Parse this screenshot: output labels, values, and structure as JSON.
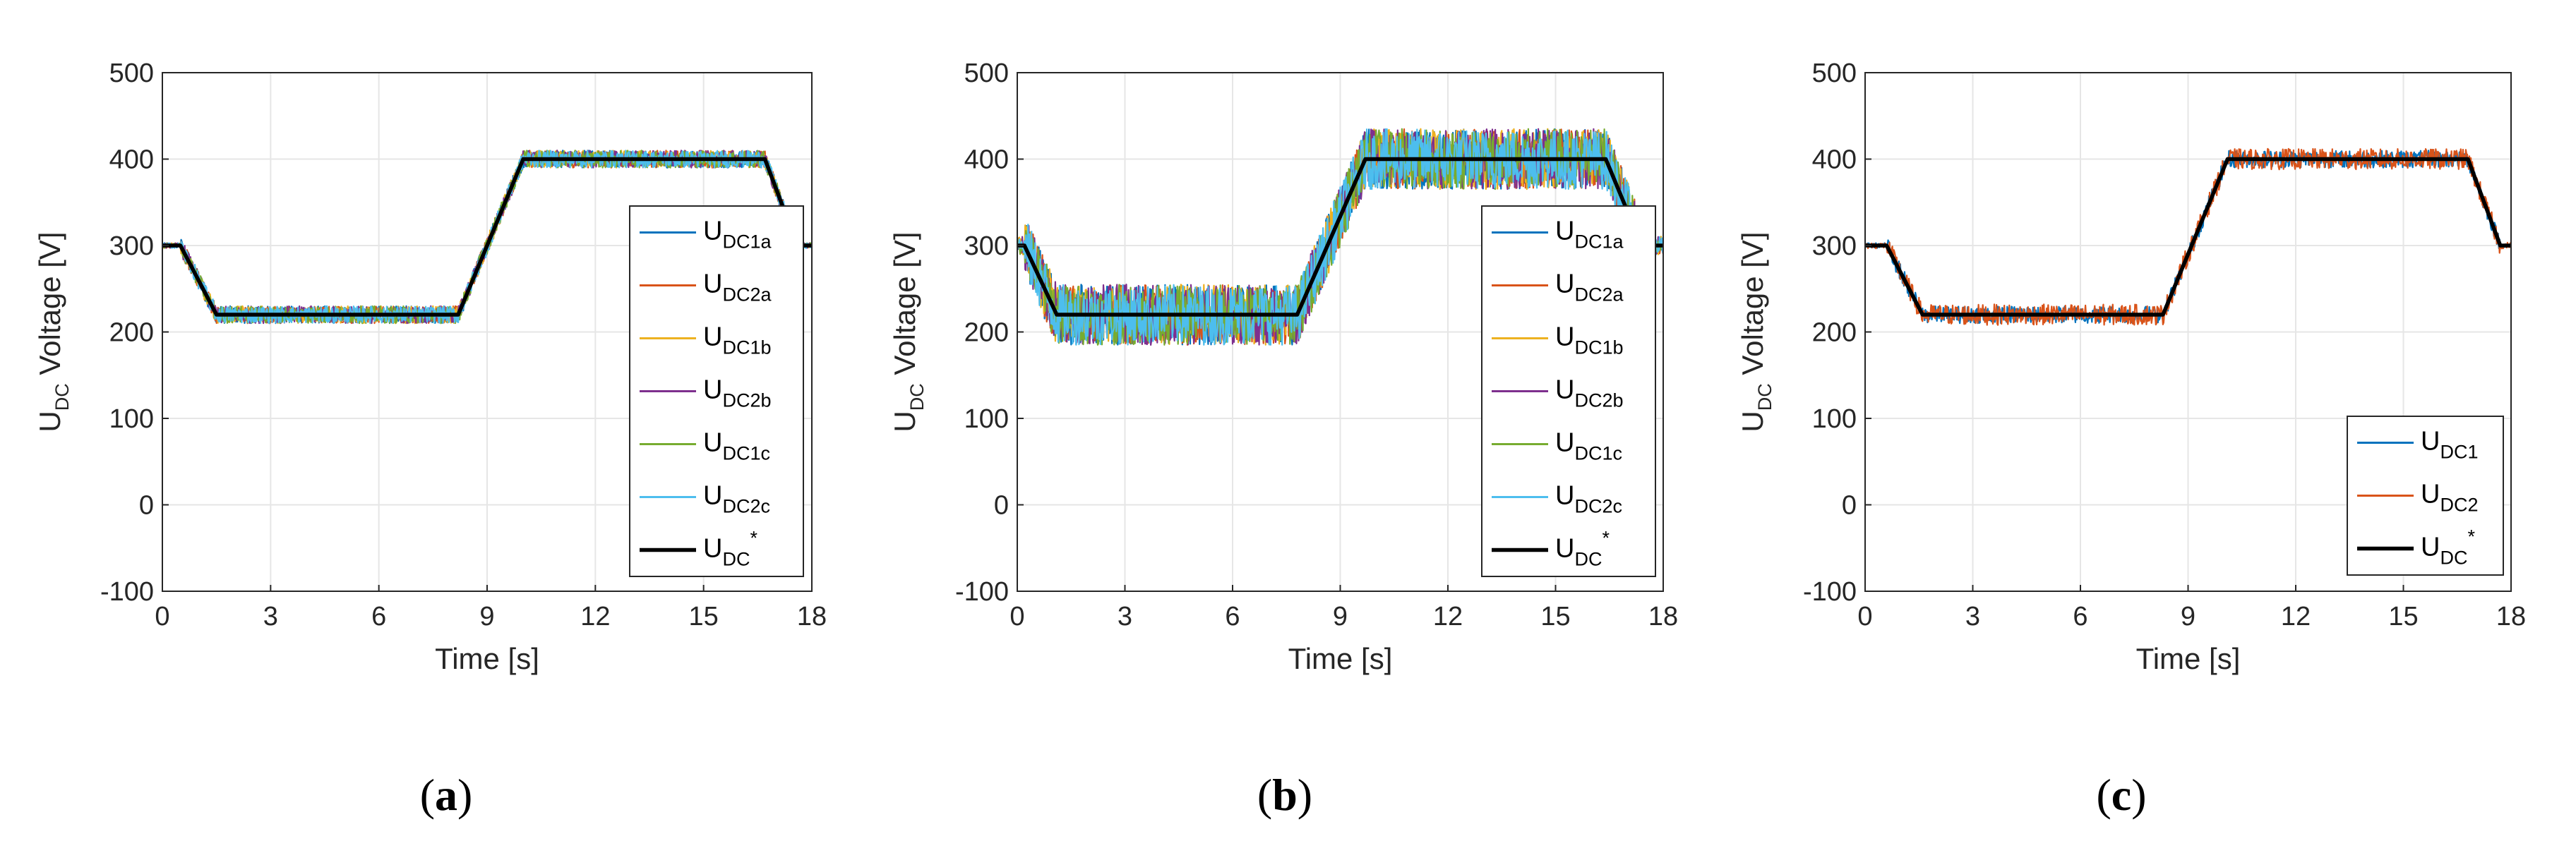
{
  "chart_data": [
    {
      "type": "line",
      "panel": "a",
      "caption_open": "(",
      "caption_letter": "a",
      "caption_close": ")",
      "xlabel": "Time [s]",
      "ylabel_main": "U",
      "ylabel_sub": "DC",
      "ylabel_rest": " Voltage [V]",
      "xlim": [
        0,
        18
      ],
      "ylim": [
        -100,
        500
      ],
      "xticks": [
        "0",
        "3",
        "6",
        "9",
        "12",
        "15",
        "18"
      ],
      "yticks": [
        "-100",
        "0",
        "100",
        "200",
        "300",
        "400",
        "500"
      ],
      "grid": true,
      "legend_position": "right-center",
      "reference": {
        "name_main": "U",
        "name_sub": "DC",
        "name_sup": "*",
        "color": "#000000",
        "x": [
          0,
          0.5,
          1.5,
          8.2,
          10.0,
          16.7,
          17.6,
          18
        ],
        "y": [
          300,
          300,
          220,
          220,
          400,
          400,
          300,
          300
        ]
      },
      "series": [
        {
          "name_main": "U",
          "name_sub": "DC1a",
          "color": "#0072BD",
          "noise": 10
        },
        {
          "name_main": "U",
          "name_sub": "DC2a",
          "color": "#D95319",
          "noise": 10
        },
        {
          "name_main": "U",
          "name_sub": "DC1b",
          "color": "#EDB120",
          "noise": 10
        },
        {
          "name_main": "U",
          "name_sub": "DC2b",
          "color": "#7E2F8E",
          "noise": 10
        },
        {
          "name_main": "U",
          "name_sub": "DC1c",
          "color": "#77AC30",
          "noise": 10
        },
        {
          "name_main": "U",
          "name_sub": "DC2c",
          "color": "#4DBEEE",
          "noise": 10
        }
      ]
    },
    {
      "type": "line",
      "panel": "b",
      "caption_open": "(",
      "caption_letter": "b",
      "caption_close": ")",
      "xlabel": "Time [s]",
      "ylabel_main": "U",
      "ylabel_sub": "DC",
      "ylabel_rest": " Voltage [V]",
      "xlim": [
        0,
        18
      ],
      "ylim": [
        -100,
        500
      ],
      "xticks": [
        "0",
        "3",
        "6",
        "9",
        "12",
        "15",
        "18"
      ],
      "yticks": [
        "-100",
        "0",
        "100",
        "200",
        "300",
        "400",
        "500"
      ],
      "grid": true,
      "legend_position": "right-center",
      "reference": {
        "name_main": "U",
        "name_sub": "DC",
        "name_sup": "*",
        "color": "#000000",
        "x": [
          0,
          0.2,
          1.1,
          7.8,
          9.7,
          16.4,
          17.4,
          18
        ],
        "y": [
          300,
          300,
          220,
          220,
          400,
          400,
          300,
          300
        ]
      },
      "series": [
        {
          "name_main": "U",
          "name_sub": "DC1a",
          "color": "#0072BD",
          "noise": 35
        },
        {
          "name_main": "U",
          "name_sub": "DC2a",
          "color": "#D95319",
          "noise": 35
        },
        {
          "name_main": "U",
          "name_sub": "DC1b",
          "color": "#EDB120",
          "noise": 35
        },
        {
          "name_main": "U",
          "name_sub": "DC2b",
          "color": "#7E2F8E",
          "noise": 35
        },
        {
          "name_main": "U",
          "name_sub": "DC1c",
          "color": "#77AC30",
          "noise": 35
        },
        {
          "name_main": "U",
          "name_sub": "DC2c",
          "color": "#4DBEEE",
          "noise": 35
        }
      ]
    },
    {
      "type": "line",
      "panel": "c",
      "caption_open": "(",
      "caption_letter": "c",
      "caption_close": ")",
      "xlabel": "Time [s]",
      "ylabel_main": "U",
      "ylabel_sub": "DC",
      "ylabel_rest": " Voltage [V]",
      "xlim": [
        0,
        18
      ],
      "ylim": [
        -100,
        500
      ],
      "xticks": [
        "0",
        "3",
        "6",
        "9",
        "12",
        "15",
        "18"
      ],
      "yticks": [
        "-100",
        "0",
        "100",
        "200",
        "300",
        "400",
        "500"
      ],
      "grid": true,
      "legend_position": "bottom-right",
      "reference": {
        "name_main": "U",
        "name_sub": "DC",
        "name_sup": "*",
        "color": "#000000",
        "x": [
          0,
          0.6,
          1.6,
          8.3,
          10.1,
          16.8,
          17.7,
          18
        ],
        "y": [
          300,
          300,
          220,
          220,
          400,
          400,
          300,
          300
        ]
      },
      "series": [
        {
          "name_main": "U",
          "name_sub": "DC1",
          "color": "#0072BD",
          "noise": 10
        },
        {
          "name_main": "U",
          "name_sub": "DC2",
          "color": "#D95319",
          "noise": 12
        }
      ]
    }
  ]
}
